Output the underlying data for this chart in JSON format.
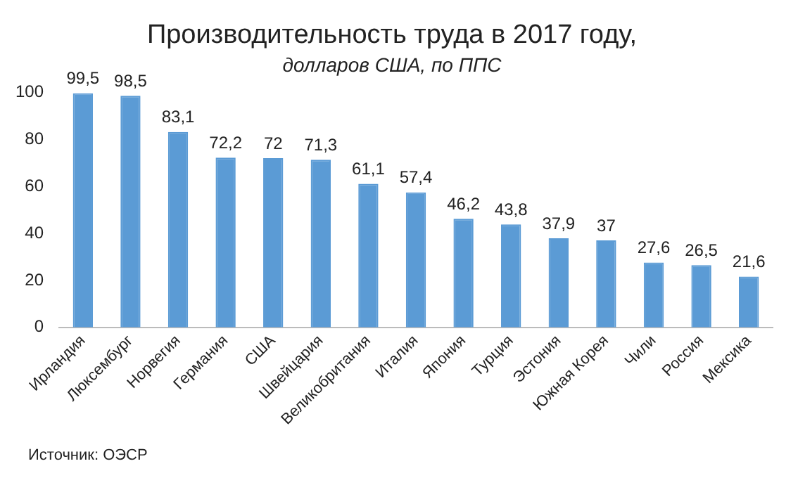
{
  "chart_data": {
    "type": "bar",
    "title": "Производительность труда в 2017 году,",
    "subtitle": "долларов США, по ППС",
    "categories": [
      "Ирландия",
      "Люксембург",
      "Норвегия",
      "Германия",
      "США",
      "Швейцария",
      "Великобритания",
      "Италия",
      "Япония",
      "Турция",
      "Эстония",
      "Южная Корея",
      "Чили",
      "Россия",
      "Мексика"
    ],
    "values": [
      99.5,
      98.5,
      83.1,
      72.2,
      72,
      71.3,
      61.1,
      57.4,
      46.2,
      43.8,
      37.9,
      37,
      27.6,
      26.5,
      21.6
    ],
    "value_labels": [
      "99,5",
      "98,5",
      "83,1",
      "72,2",
      "72",
      "71,3",
      "61,1",
      "57,4",
      "46,2",
      "43,8",
      "37,9",
      "37",
      "27,6",
      "26,5",
      "21,6"
    ],
    "color": "#5b9bd5",
    "ylim": [
      0,
      100
    ],
    "yticks": [
      0,
      20,
      40,
      60,
      80,
      100
    ],
    "grid": false,
    "legend": false,
    "annotations": [
      "Источник: ОЭСР"
    ]
  }
}
